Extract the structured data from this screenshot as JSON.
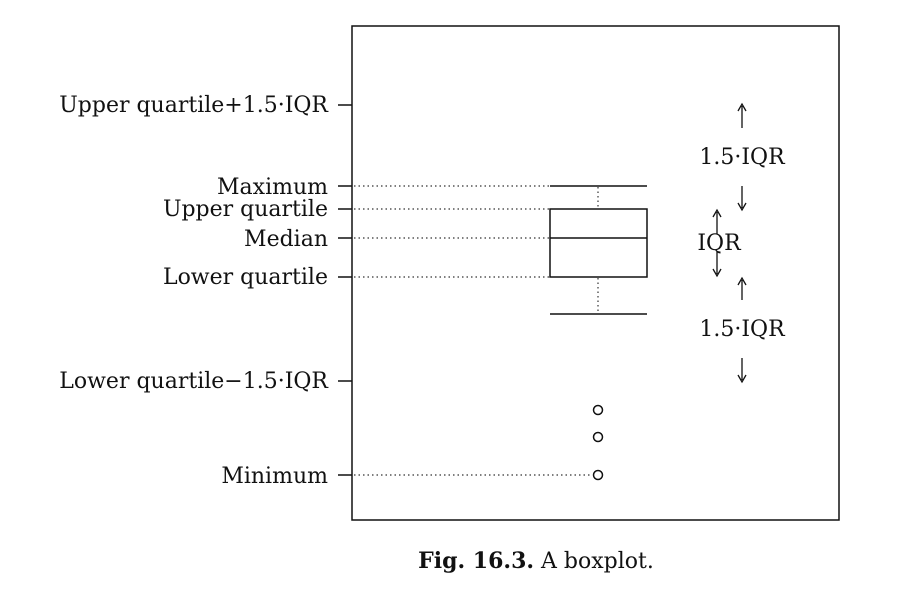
{
  "figure": {
    "axis_labels": {
      "upper_fence": "Upper quartile+1.5·IQR",
      "maximum": "Maximum",
      "upper_quartile": "Upper quartile",
      "median": "Median",
      "lower_quartile": "Lower quartile",
      "lower_fence": "Lower quartile−1.5·IQR",
      "minimum": "Minimum"
    },
    "annotations": {
      "upper_span": "1.5·IQR",
      "iqr_span": "IQR",
      "lower_span": "1.5·IQR"
    },
    "caption": {
      "label": "Fig. 16.3.",
      "text": "A boxplot."
    },
    "outlier_count": 3
  }
}
